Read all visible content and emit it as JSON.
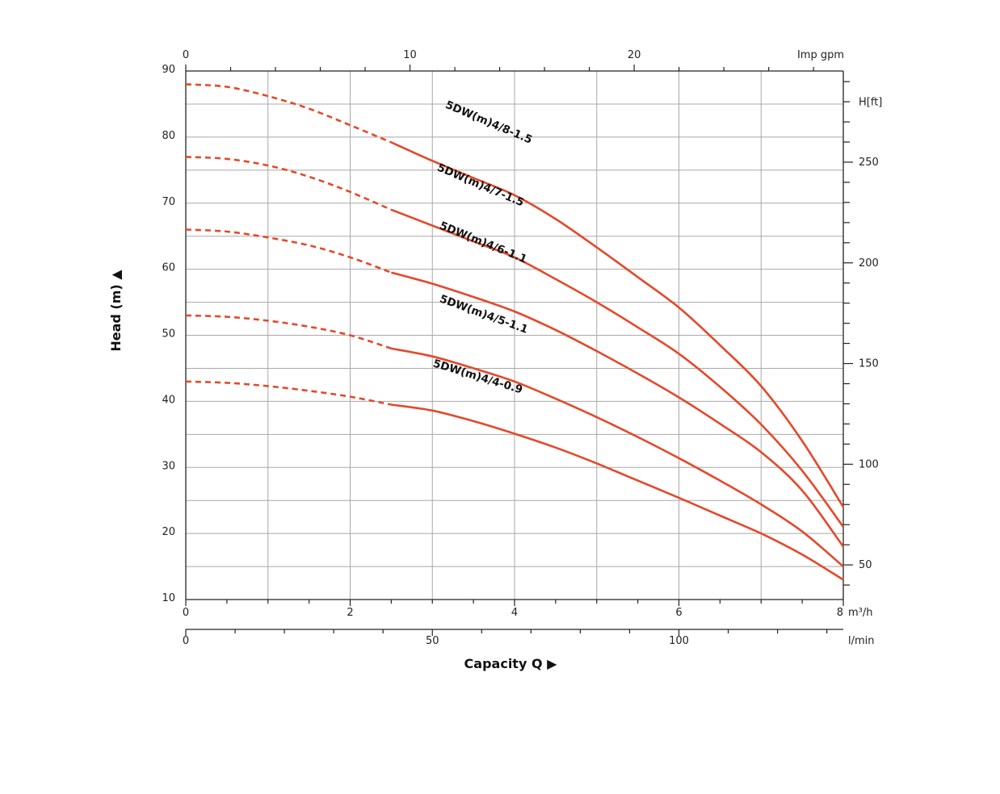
{
  "chart_data": {
    "type": "line",
    "title": "",
    "ylabel": "Head (m)",
    "xlabel": "Capacity Q",
    "x_unit": "m³/h",
    "xlim": [
      0,
      8
    ],
    "ylim": [
      10,
      90
    ],
    "grid": true,
    "x_ticks": [
      {
        "value": 0,
        "label": "0"
      },
      {
        "value": 2,
        "label": "2"
      },
      {
        "value": 4,
        "label": "4"
      },
      {
        "value": 6,
        "label": "6"
      },
      {
        "value": 8,
        "label": "8"
      }
    ],
    "y_ticks": [
      10,
      20,
      30,
      40,
      50,
      60,
      70,
      80,
      90
    ],
    "secondary_axes": {
      "top": {
        "unit": "Imp gpm",
        "ticks": [
          0,
          10,
          20
        ],
        "factor": 3.666
      },
      "bottom": {
        "unit": "l/min",
        "ticks": [
          0,
          50,
          100
        ],
        "factor": 16.6667
      },
      "right": {
        "unit": "H[ft]",
        "ticks": [
          50,
          100,
          150,
          200,
          250
        ],
        "factor": 3.2808
      }
    },
    "series": [
      {
        "name": "5DW(m)4/8-1.5",
        "dashed": [
          [
            0,
            88
          ],
          [
            0.5,
            87.6
          ],
          [
            1,
            86.2
          ],
          [
            1.5,
            84.3
          ],
          [
            2,
            81.8
          ],
          [
            2.5,
            79.2
          ]
        ],
        "solid": [
          [
            2.5,
            79.2
          ],
          [
            3,
            76.4
          ],
          [
            3.5,
            73.8
          ],
          [
            4,
            71.2
          ],
          [
            4.5,
            67.6
          ],
          [
            5,
            63.3
          ],
          [
            5.5,
            58.8
          ],
          [
            6,
            54.2
          ],
          [
            6.5,
            48.5
          ],
          [
            7,
            42.3
          ],
          [
            7.5,
            34.0
          ],
          [
            8,
            24.0
          ]
        ]
      },
      {
        "name": "5DW(m)4/7-1.5",
        "dashed": [
          [
            0,
            77
          ],
          [
            0.5,
            76.7
          ],
          [
            1,
            75.7
          ],
          [
            1.5,
            74
          ],
          [
            2,
            71.7
          ],
          [
            2.5,
            69
          ]
        ],
        "solid": [
          [
            2.5,
            69
          ],
          [
            3,
            66.6
          ],
          [
            3.5,
            64.2
          ],
          [
            4,
            61.8
          ],
          [
            4.5,
            58.5
          ],
          [
            5,
            55.0
          ],
          [
            5.5,
            51.2
          ],
          [
            6,
            47.2
          ],
          [
            6.5,
            42.2
          ],
          [
            7,
            36.5
          ],
          [
            7.5,
            29.5
          ],
          [
            8,
            21.0
          ]
        ]
      },
      {
        "name": "5DW(m)4/6-1.1",
        "dashed": [
          [
            0,
            66
          ],
          [
            0.5,
            65.7
          ],
          [
            1,
            64.8
          ],
          [
            1.5,
            63.6
          ],
          [
            2,
            61.8
          ],
          [
            2.5,
            59.5
          ]
        ],
        "solid": [
          [
            2.5,
            59.5
          ],
          [
            3,
            57.8
          ],
          [
            3.5,
            55.8
          ],
          [
            4,
            53.6
          ],
          [
            4.5,
            50.8
          ],
          [
            5,
            47.6
          ],
          [
            5.5,
            44.2
          ],
          [
            6,
            40.6
          ],
          [
            6.5,
            36.6
          ],
          [
            7,
            32.3
          ],
          [
            7.5,
            26.5
          ],
          [
            8,
            18.0
          ]
        ]
      },
      {
        "name": "5DW(m)4/5-1.1",
        "dashed": [
          [
            0,
            53
          ],
          [
            0.5,
            52.8
          ],
          [
            1,
            52.2
          ],
          [
            1.5,
            51.3
          ],
          [
            2,
            50
          ],
          [
            2.5,
            48.0
          ]
        ],
        "solid": [
          [
            2.5,
            48.0
          ],
          [
            3,
            46.8
          ],
          [
            3.5,
            45.0
          ],
          [
            4,
            43.0
          ],
          [
            4.5,
            40.4
          ],
          [
            5,
            37.6
          ],
          [
            5.5,
            34.6
          ],
          [
            6,
            31.4
          ],
          [
            6.5,
            28.0
          ],
          [
            7,
            24.4
          ],
          [
            7.5,
            20.3
          ],
          [
            8,
            15.0
          ]
        ]
      },
      {
        "name": "5DW(m)4/4-0.9",
        "dashed": [
          [
            0,
            43
          ],
          [
            0.5,
            42.8
          ],
          [
            1,
            42.3
          ],
          [
            1.5,
            41.6
          ],
          [
            2,
            40.7
          ],
          [
            2.5,
            39.5
          ]
        ],
        "solid": [
          [
            2.5,
            39.5
          ],
          [
            3,
            38.6
          ],
          [
            3.5,
            37.0
          ],
          [
            4,
            35.1
          ],
          [
            4.5,
            33.0
          ],
          [
            5,
            30.6
          ],
          [
            5.5,
            28.0
          ],
          [
            6,
            25.4
          ],
          [
            6.5,
            22.7
          ],
          [
            7,
            20.0
          ],
          [
            7.5,
            16.8
          ],
          [
            8,
            13.0
          ]
        ]
      }
    ],
    "curve_labels": [
      {
        "text": "5DW(m)4/8-1.5",
        "x": 3.15,
        "y": 84.5,
        "angle": 23
      },
      {
        "text": "5DW(m)4/7-1.5",
        "x": 3.05,
        "y": 75.0,
        "angle": 23
      },
      {
        "text": "5DW(m)4/6-1.1",
        "x": 3.08,
        "y": 66.2,
        "angle": 22
      },
      {
        "text": "5DW(m)4/5-1.1",
        "x": 3.08,
        "y": 55.1,
        "angle": 20
      },
      {
        "text": "5DW(m)4/4-0.9",
        "x": 3.0,
        "y": 45.3,
        "angle": 17
      }
    ]
  }
}
